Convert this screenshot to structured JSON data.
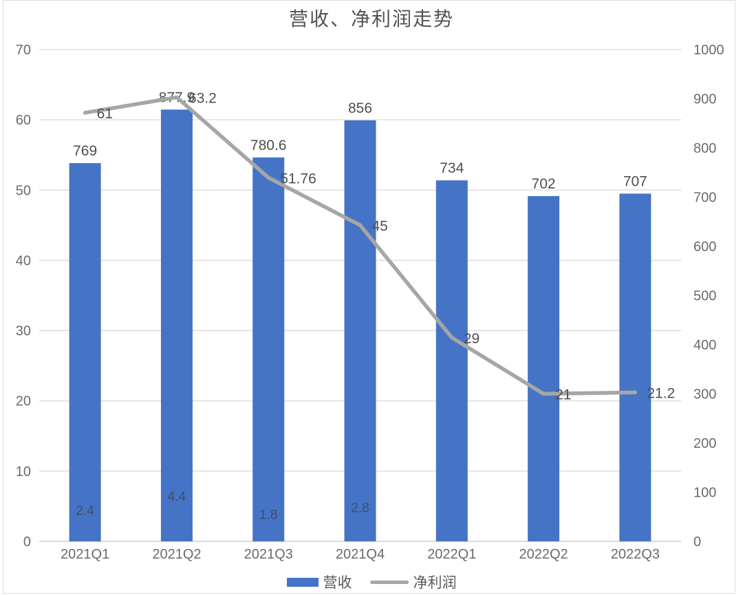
{
  "title": "营收、净利润走势",
  "colors": {
    "bar": "#4574c6",
    "line": "#a6a6a6",
    "grid": "#d9d9d9",
    "axis_line": "#c3c3c3",
    "text": "#6a6a6a",
    "label_text": "#4f4f4f",
    "inside_label": "#3e4a5c"
  },
  "legend": [
    {
      "swatch": "bar-swatch",
      "label": "营收"
    },
    {
      "swatch": "line-swatch",
      "label": "净利润"
    }
  ],
  "chart_data": {
    "type": "bar+line dual-axis combo",
    "title": "营收、净利润走势",
    "categories": [
      "2021Q1",
      "2021Q2",
      "2021Q3",
      "2021Q4",
      "2022Q1",
      "2022Q2",
      "2022Q3"
    ],
    "series": [
      {
        "name": "营收",
        "type": "bar",
        "axis": "right",
        "values": [
          769,
          877.9,
          780.6,
          856,
          734,
          702,
          707
        ]
      },
      {
        "name": "净利润",
        "type": "line",
        "axis": "left",
        "values": [
          61,
          63.2,
          51.76,
          45,
          29,
          21,
          21.2
        ]
      }
    ],
    "inside_bar_labels": [
      2.4,
      4.4,
      1.8,
      2.8,
      null,
      null,
      null
    ],
    "left_axis": {
      "min": 0,
      "max": 70,
      "step": 10,
      "ticks": [
        "70",
        "60",
        "50",
        "40",
        "30",
        "20",
        "10",
        "0"
      ]
    },
    "right_axis": {
      "min": 0,
      "max": 1000,
      "step": 100,
      "ticks": [
        "1000",
        "900",
        "800",
        "700",
        "600",
        "500",
        "400",
        "300",
        "200",
        "100",
        "0"
      ]
    },
    "grid": true,
    "legend_position": "bottom"
  }
}
